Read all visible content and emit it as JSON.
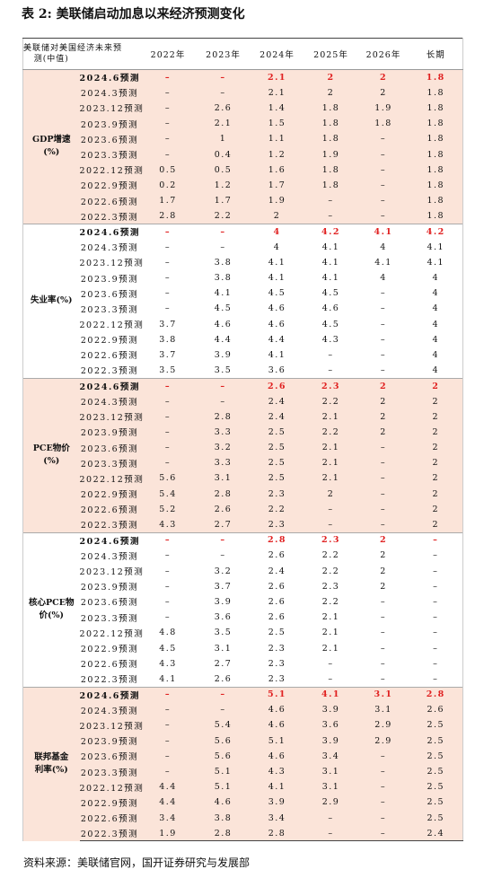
{
  "title": "表 2: 美联储启动加息以来经济预测变化",
  "table": {
    "header": {
      "corner": [
        "美联储对美国经济未来预",
        "测(中值)"
      ],
      "columns": [
        "2022年",
        "2023年",
        "2024年",
        "2025年",
        "2026年",
        "长期"
      ]
    },
    "groups": [
      {
        "label": [
          "GDP增速",
          "(%)"
        ],
        "rows": [
          [
            "2024.6预测",
            "–",
            "–",
            "2.1",
            "2",
            "2",
            "1.8"
          ],
          [
            "2024.3预测",
            "–",
            "–",
            "2.1",
            "2",
            "2",
            "1.8"
          ],
          [
            "2023.12预测",
            "–",
            "2.6",
            "1.4",
            "1.8",
            "1.9",
            "1.8"
          ],
          [
            "2023.9预测",
            "–",
            "2.1",
            "1.5",
            "1.8",
            "1.8",
            "1.8"
          ],
          [
            "2023.6预测",
            "–",
            "1",
            "1.1",
            "1.8",
            "–",
            "1.8"
          ],
          [
            "2023.3预测",
            "–",
            "0.4",
            "1.2",
            "1.9",
            "–",
            "1.8"
          ],
          [
            "2022.12预测",
            "0.5",
            "0.5",
            "1.6",
            "1.8",
            "–",
            "1.8"
          ],
          [
            "2022.9预测",
            "0.2",
            "1.2",
            "1.7",
            "1.8",
            "–",
            "1.8"
          ],
          [
            "2022.6预测",
            "1.7",
            "1.7",
            "1.9",
            "–",
            "–",
            "1.8"
          ],
          [
            "2022.3预测",
            "2.8",
            "2.2",
            "2",
            "–",
            "–",
            "1.8"
          ]
        ]
      },
      {
        "label": [
          "失业率(%)"
        ],
        "rows": [
          [
            "2024.6预测",
            "–",
            "–",
            "4",
            "4.2",
            "4.1",
            "4.2"
          ],
          [
            "2024.3预测",
            "–",
            "–",
            "4",
            "4.1",
            "4",
            "4.1"
          ],
          [
            "2023.12预测",
            "–",
            "3.8",
            "4.1",
            "4.1",
            "4.1",
            "4.1"
          ],
          [
            "2023.9预测",
            "–",
            "3.8",
            "4.1",
            "4.1",
            "4",
            "4"
          ],
          [
            "2023.6预测",
            "–",
            "4.1",
            "4.5",
            "4.5",
            "–",
            "4"
          ],
          [
            "2023.3预测",
            "–",
            "4.5",
            "4.6",
            "4.6",
            "–",
            "4"
          ],
          [
            "2022.12预测",
            "3.7",
            "4.6",
            "4.6",
            "4.5",
            "–",
            "4"
          ],
          [
            "2022.9预测",
            "3.8",
            "4.4",
            "4.4",
            "4.3",
            "–",
            "4"
          ],
          [
            "2022.6预测",
            "3.7",
            "3.9",
            "4.1",
            "–",
            "–",
            "4"
          ],
          [
            "2022.3预测",
            "3.5",
            "3.5",
            "3.6",
            "–",
            "–",
            "4"
          ]
        ]
      },
      {
        "label": [
          "PCE物价",
          "(%)"
        ],
        "rows": [
          [
            "2024.6预测",
            "–",
            "–",
            "2.6",
            "2.3",
            "2",
            "2"
          ],
          [
            "2024.3预测",
            "–",
            "–",
            "2.4",
            "2.2",
            "2",
            "2"
          ],
          [
            "2023.12预测",
            "–",
            "2.8",
            "2.4",
            "2.1",
            "2",
            "2"
          ],
          [
            "2023.9预测",
            "–",
            "3.3",
            "2.5",
            "2.2",
            "2",
            "2"
          ],
          [
            "2023.6预测",
            "–",
            "3.2",
            "2.5",
            "2.1",
            "–",
            "2"
          ],
          [
            "2023.3预测",
            "–",
            "3.3",
            "2.5",
            "2.1",
            "–",
            "2"
          ],
          [
            "2022.12预测",
            "5.6",
            "3.1",
            "2.5",
            "2.1",
            "–",
            "2"
          ],
          [
            "2022.9预测",
            "5.4",
            "2.8",
            "2.3",
            "2",
            "–",
            "2"
          ],
          [
            "2022.6预测",
            "5.2",
            "2.6",
            "2.2",
            "–",
            "–",
            "2"
          ],
          [
            "2022.3预测",
            "4.3",
            "2.7",
            "2.3",
            "–",
            "–",
            "2"
          ]
        ]
      },
      {
        "label": [
          "核心PCE物",
          "价(%)"
        ],
        "rows": [
          [
            "2024.6预测",
            "–",
            "–",
            "2.8",
            "2.3",
            "2",
            "–"
          ],
          [
            "2024.3预测",
            "–",
            "–",
            "2.6",
            "2.2",
            "2",
            "–"
          ],
          [
            "2023.12预测",
            "–",
            "3.2",
            "2.4",
            "2.2",
            "2",
            "–"
          ],
          [
            "2023.9预测",
            "–",
            "3.7",
            "2.6",
            "2.3",
            "2",
            "–"
          ],
          [
            "2023.6预测",
            "–",
            "3.9",
            "2.6",
            "2.2",
            "–",
            "–"
          ],
          [
            "2023.3预测",
            "–",
            "3.6",
            "2.6",
            "2.1",
            "–",
            "–"
          ],
          [
            "2022.12预测",
            "4.8",
            "3.5",
            "2.5",
            "2.1",
            "–",
            "–"
          ],
          [
            "2022.9预测",
            "4.5",
            "3.1",
            "2.3",
            "2.1",
            "–",
            "–"
          ],
          [
            "2022.6预测",
            "4.3",
            "2.7",
            "2.3",
            "–",
            "–",
            "–"
          ],
          [
            "2022.3预测",
            "4.1",
            "2.6",
            "2.3",
            "–",
            "–",
            "–"
          ]
        ]
      },
      {
        "label": [
          "联邦基金",
          "利率(%)"
        ],
        "rows": [
          [
            "2024.6预测",
            "–",
            "–",
            "5.1",
            "4.1",
            "3.1",
            "2.8"
          ],
          [
            "2024.3预测",
            "–",
            "–",
            "4.6",
            "3.9",
            "3.1",
            "2.6"
          ],
          [
            "2023.12预测",
            "–",
            "5.4",
            "4.6",
            "3.6",
            "2.9",
            "2.5"
          ],
          [
            "2023.9预测",
            "–",
            "5.6",
            "5.1",
            "3.9",
            "2.9",
            "2.5"
          ],
          [
            "2023.6预测",
            "–",
            "5.6",
            "4.6",
            "3.4",
            "–",
            "2.5"
          ],
          [
            "2023.3预测",
            "–",
            "5.1",
            "4.3",
            "3.1",
            "–",
            "2.5"
          ],
          [
            "2022.12预测",
            "4.4",
            "5.1",
            "4.1",
            "3.1",
            "–",
            "2.5"
          ],
          [
            "2022.9预测",
            "4.4",
            "4.6",
            "3.9",
            "2.9",
            "–",
            "2.5"
          ],
          [
            "2022.6预测",
            "3.4",
            "3.8",
            "3.4",
            "–",
            "–",
            "2.5"
          ],
          [
            "2022.3预测",
            "1.9",
            "2.8",
            "2.8",
            "–",
            "–",
            "2.4"
          ]
        ]
      }
    ]
  },
  "source": "资料来源：美联储官网，国开证券研究与发展部"
}
